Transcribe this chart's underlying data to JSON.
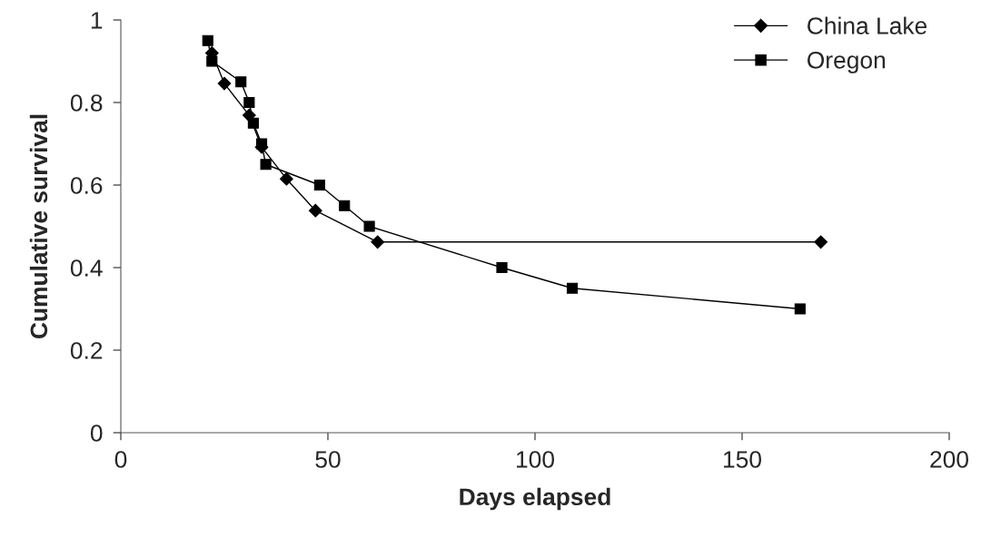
{
  "chart_data": {
    "type": "line",
    "xlabel": "Days elapsed",
    "ylabel": "Cumulative survival",
    "series": [
      {
        "name": "China Lake",
        "color": "#000000",
        "marker": "diamond",
        "x": [
          22,
          25,
          31,
          34,
          40,
          47,
          62,
          169
        ],
        "values": [
          0.92,
          0.846,
          0.769,
          0.692,
          0.615,
          0.538,
          0.462,
          0.462
        ]
      },
      {
        "name": "Oregon",
        "color": "#000000",
        "marker": "square",
        "x": [
          21,
          22,
          29,
          31,
          32,
          34,
          35,
          48,
          54,
          60,
          92,
          109,
          164
        ],
        "values": [
          0.95,
          0.9,
          0.85,
          0.8,
          0.75,
          0.7,
          0.65,
          0.6,
          0.55,
          0.5,
          0.4,
          0.35,
          0.3
        ]
      }
    ],
    "xlim": [
      0,
      200
    ],
    "xticks": [
      0,
      50,
      100,
      150,
      200
    ],
    "ylim": [
      0,
      1
    ],
    "yticks": [
      0,
      0.2,
      0.4,
      0.6,
      0.8,
      1
    ],
    "grid": false,
    "legend": "top right",
    "line_style": "solid"
  }
}
